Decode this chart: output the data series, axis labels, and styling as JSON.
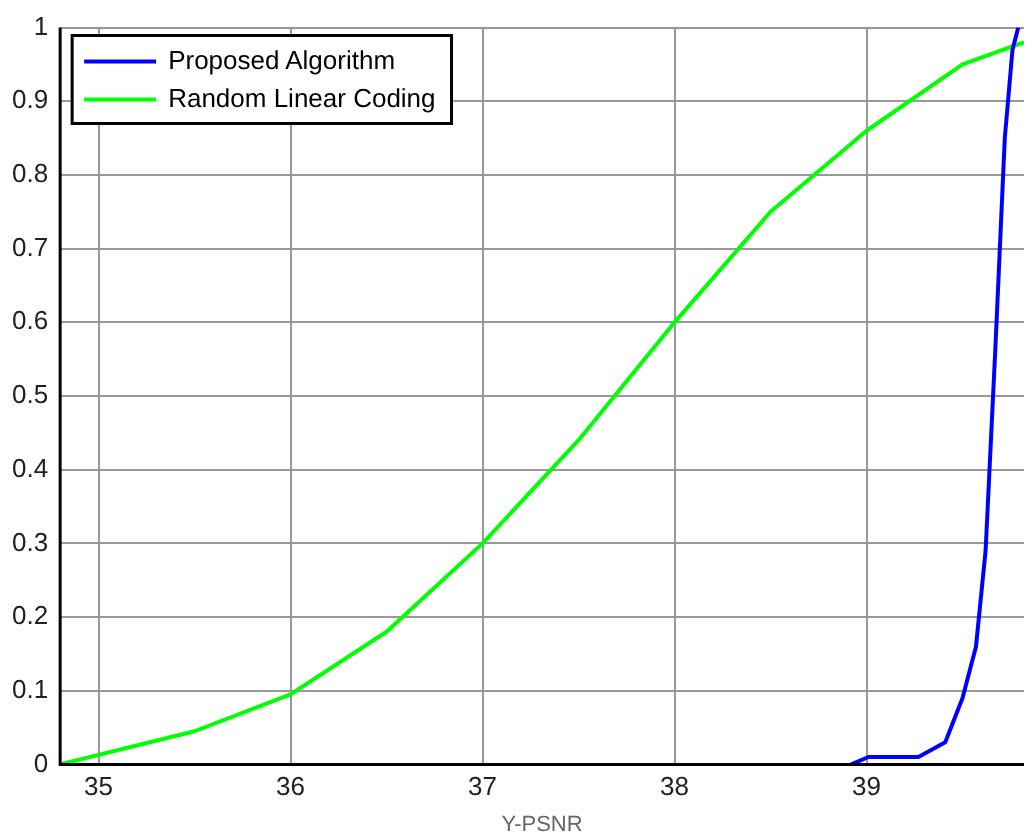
{
  "chart_data": {
    "type": "line",
    "xlabel": "Y-PSNR",
    "xlim": [
      34.8,
      39.82
    ],
    "xticks": [
      35,
      36,
      37,
      38,
      39
    ],
    "ylim": [
      0,
      1
    ],
    "yticks": [
      0,
      0.1,
      0.2,
      0.3,
      0.4,
      0.5,
      0.6,
      0.7,
      0.8,
      0.9,
      1
    ],
    "grid": true,
    "legend": "top left",
    "marker": "none",
    "line_style": "solid",
    "series": [
      {
        "name": "Proposed Algorithm",
        "color": "#0000ff",
        "x": [
          38.92,
          39.01,
          39.27,
          39.41,
          39.5,
          39.57,
          39.62,
          39.67,
          39.72,
          39.76,
          39.79
        ],
        "values": [
          0,
          0.01,
          0.01,
          0.03,
          0.09,
          0.16,
          0.29,
          0.56,
          0.85,
          0.97,
          1
        ]
      },
      {
        "name": "Random Linear Coding",
        "color": "#00ff00",
        "x": [
          34.8,
          35,
          35.5,
          36,
          36.5,
          37,
          37.5,
          38,
          38.5,
          39,
          39.5,
          39.82
        ],
        "values": [
          0,
          0.013,
          0.045,
          0.095,
          0.18,
          0.3,
          0.44,
          0.6,
          0.75,
          0.86,
          0.95,
          0.98
        ]
      }
    ]
  }
}
